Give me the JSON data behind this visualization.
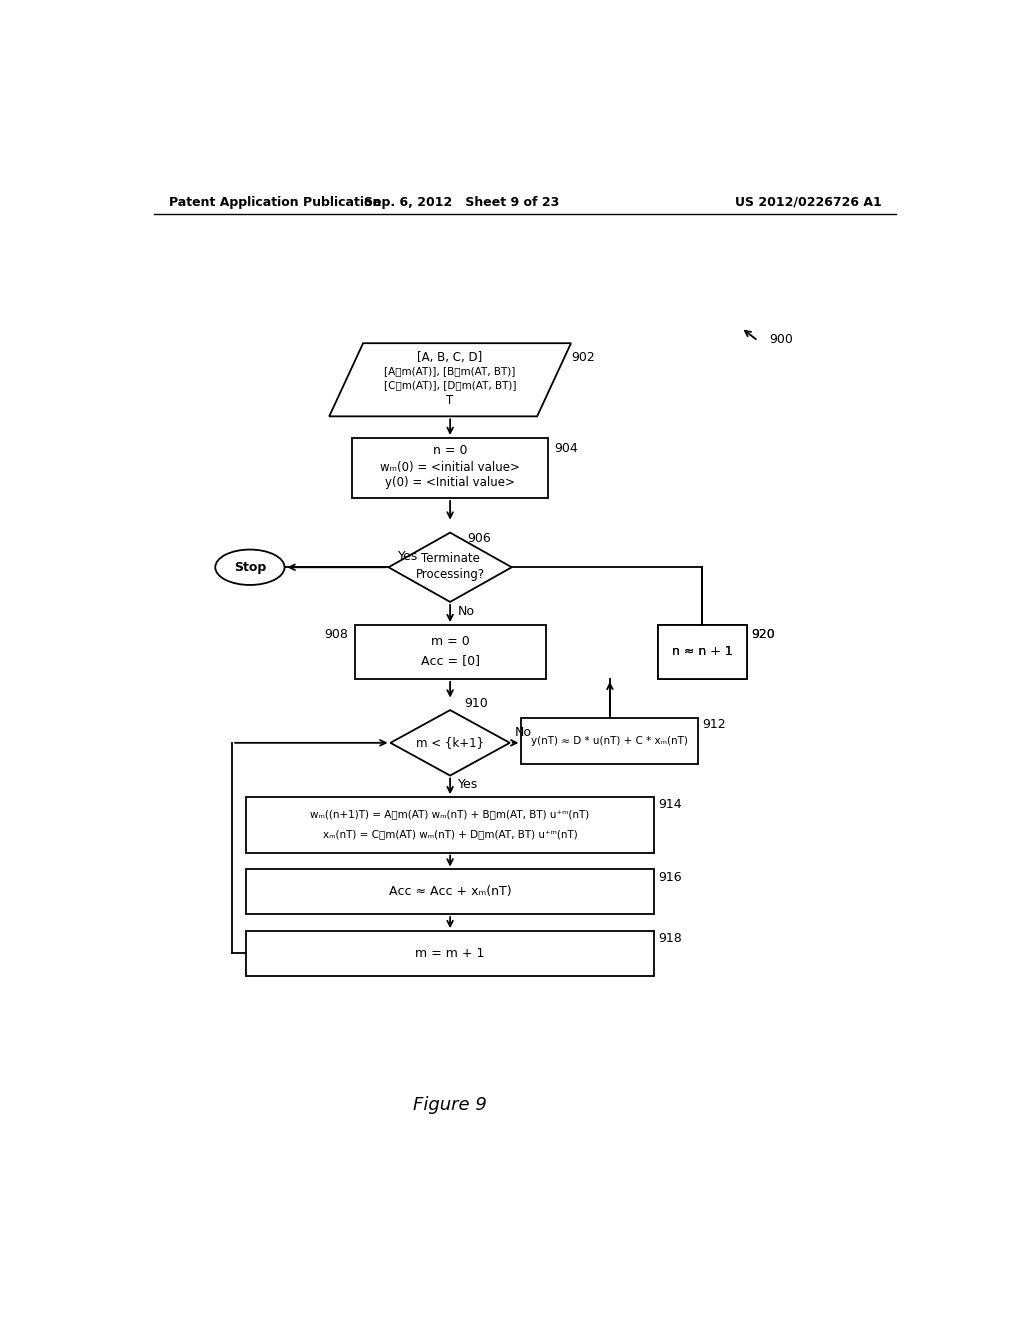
{
  "header_left": "Patent Application Publication",
  "header_mid": "Sep. 6, 2012   Sheet 9 of 23",
  "header_right": "US 2012/0226726 A1",
  "figure_label": "Figure 9",
  "ref_900": "900",
  "ref_902": "902",
  "ref_904": "904",
  "ref_906": "906",
  "ref_908": "908",
  "ref_910": "910",
  "ref_912": "912",
  "ref_914": "914",
  "ref_916": "916",
  "ref_918": "918",
  "ref_920": "920",
  "box902_line1": "[A, B, C, D]",
  "box902_line2": "[A₝m(AT)], [B₝m(AT, BT)]",
  "box902_line3": "[C₝m(AT)], [D₝m(AT, BT)]",
  "box902_line4": "T",
  "box904_line1": "n = 0",
  "box904_line2": "wₘ(0) = <initial value>",
  "box904_line3": "y(0) = <Initial value>",
  "box906_line1": "Terminate",
  "box906_line2": "Processing?",
  "box908_line1": "m = 0",
  "box908_line2": "Aᴄc = [0]",
  "box910_text": "m < {k+1}",
  "box912_text": "y(nT) ≈ D * u(nT) + C * xₘ(nT)",
  "box914_line1": "wₘ((n+1)T) = A₝m(AT) wₘ(nT) + B₝m(AT, BT) u⁺ᵐ(nT)",
  "box914_line2": "xₘ(nT) = C₝m(AT) wₘ(nT) + D₝m(AT, BT) u⁺ᵐ(nT)",
  "box916_text": "Aᴄc ≈ Aᴄc + xₘ(nT)",
  "box918_text": "m = m + 1",
  "box920_text": "n ≈ n + 1",
  "stop_label": "Stop",
  "yes1": "Yes",
  "no1": "No",
  "yes2": "Yes",
  "no2": "No",
  "bg_color": "#ffffff"
}
